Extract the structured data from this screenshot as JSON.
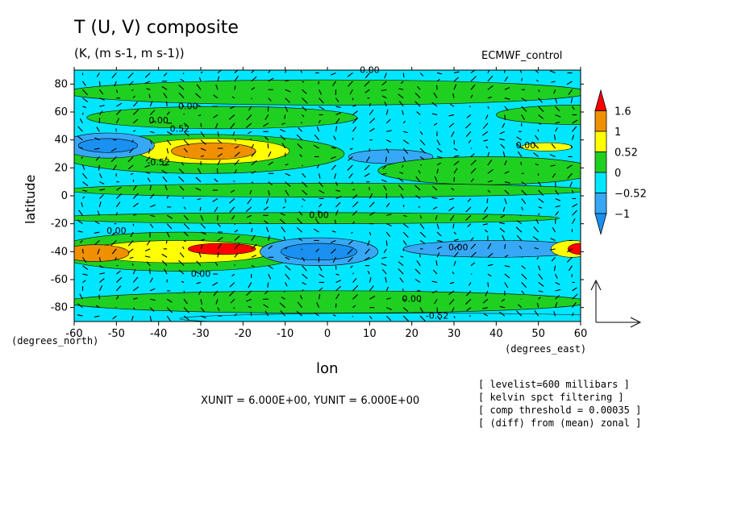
{
  "header": {
    "title": "T (U, V) composite",
    "subtitle": "(K, (m s-1, m s-1))",
    "dataset": "ECMWF_control"
  },
  "axes": {
    "xlabel": "lon",
    "ylabel": "latitude",
    "x_units": "(degrees_east)",
    "y_units": "(degrees_north)"
  },
  "vector_units": "XUNIT = 6.000E+00, YUNIT = 6.000E+00",
  "notes": [
    "[ levelist=600 millibars ]",
    "[ kelvin spct filtering ]",
    "[ comp threshold = 0.00035 ]",
    "[ (diff) from (mean) zonal ]"
  ],
  "colors": {
    "lt_minus1": "#1a90f0",
    "m1_m052": "#37a8f5",
    "m052_0": "#00e6ff",
    "0_052": "#20d020",
    "052_1": "#ffff00",
    "1_16": "#f09000",
    "gt_16": "#ff0000"
  },
  "chart_data": {
    "type": "heatmap",
    "subtype": "filled contour with wind vectors",
    "x": [
      -60,
      -50,
      -40,
      -30,
      -20,
      -10,
      0,
      10,
      20,
      30,
      40,
      50,
      60
    ],
    "y": [
      -80,
      -60,
      -40,
      -20,
      0,
      20,
      40,
      60,
      80
    ],
    "xlim": [
      -60,
      60
    ],
    "ylim": [
      -90,
      90
    ],
    "x_tick_labels": [
      "-60",
      "-50",
      "-40",
      "-30",
      "-20",
      "-10",
      "0",
      "10",
      "20",
      "30",
      "40",
      "50",
      "60"
    ],
    "y_tick_labels": [
      "-80",
      "-60",
      "-40",
      "-20",
      "0",
      "20",
      "40",
      "60",
      "80"
    ],
    "colorbar": {
      "levels": [
        -1,
        -0.52,
        0,
        0.52,
        1,
        1.6
      ],
      "labels": [
        "1.6",
        "1",
        "0.52",
        "0",
        "−0.52",
        "−1"
      ]
    },
    "contour_labels": [
      "0.00",
      "0.00",
      "0.00",
      "0.52",
      "-0.52",
      "0.00",
      "0.00",
      "0.00",
      "0.00",
      "0.00",
      "0.00",
      "-0.52"
    ],
    "features": [
      {
        "lon": -50,
        "lat": 35,
        "value": "< -1"
      },
      {
        "lon": -27,
        "lat": 32,
        "value": "1 to 1.6"
      },
      {
        "lon": 15,
        "lat": 28,
        "value": "-1 to -0.52"
      },
      {
        "lon": -55,
        "lat": -40,
        "value": "1 to 1.6"
      },
      {
        "lon": -25,
        "lat": -38,
        "value": "> 1.6"
      },
      {
        "lon": -2,
        "lat": -40,
        "value": "< -1"
      },
      {
        "lon": 60,
        "lat": -38,
        "value": "> 1.6"
      }
    ]
  }
}
